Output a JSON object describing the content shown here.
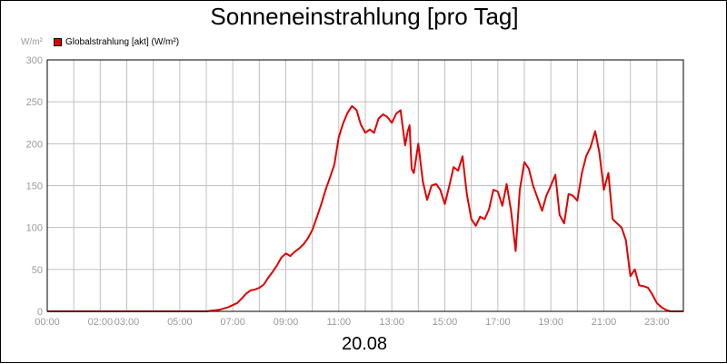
{
  "title": "Sonneneinstrahlung [pro Tag]",
  "y_unit": "W/m²",
  "date_label": "20.08",
  "colors": {
    "series": "#e00000",
    "grid": "#c0c0c0",
    "tick_text": "#9a9a9a",
    "axis": "#000000"
  },
  "chart_data": {
    "type": "line",
    "title": "Sonneneinstrahlung [pro Tag]",
    "ylabel": "W/m²",
    "xlabel": "20.08",
    "ylim": [
      0,
      300
    ],
    "xlim": [
      0,
      24
    ],
    "yticks": [
      0,
      50,
      100,
      150,
      200,
      250,
      300
    ],
    "xticks": [
      {
        "h": 0,
        "label": "00:00"
      },
      {
        "h": 2,
        "label": "02:00"
      },
      {
        "h": 3,
        "label": "03:00"
      },
      {
        "h": 5,
        "label": "05:00"
      },
      {
        "h": 7,
        "label": "07:00"
      },
      {
        "h": 9,
        "label": "09:00"
      },
      {
        "h": 11,
        "label": "11:00"
      },
      {
        "h": 13,
        "label": "13:00"
      },
      {
        "h": 15,
        "label": "15:00"
      },
      {
        "h": 17,
        "label": "17:00"
      },
      {
        "h": 19,
        "label": "19:00"
      },
      {
        "h": 21,
        "label": "21:00"
      },
      {
        "h": 23,
        "label": "23:00"
      }
    ],
    "grid": true,
    "legend": "top-left",
    "series": [
      {
        "name": "Globalstrahlung [akt] (W/m²)",
        "color": "#e00000",
        "points": [
          [
            0.0,
            0
          ],
          [
            6.0,
            0
          ],
          [
            6.5,
            2
          ],
          [
            6.83,
            5
          ],
          [
            7.17,
            10
          ],
          [
            7.33,
            15
          ],
          [
            7.5,
            21
          ],
          [
            7.67,
            25
          ],
          [
            7.83,
            26
          ],
          [
            8.0,
            28
          ],
          [
            8.17,
            32
          ],
          [
            8.33,
            40
          ],
          [
            8.5,
            47
          ],
          [
            8.67,
            55
          ],
          [
            8.83,
            64
          ],
          [
            9.0,
            69
          ],
          [
            9.17,
            66
          ],
          [
            9.33,
            71
          ],
          [
            9.5,
            75
          ],
          [
            9.67,
            80
          ],
          [
            9.83,
            87
          ],
          [
            10.0,
            97
          ],
          [
            10.17,
            112
          ],
          [
            10.33,
            127
          ],
          [
            10.5,
            145
          ],
          [
            10.67,
            160
          ],
          [
            10.83,
            175
          ],
          [
            11.0,
            208
          ],
          [
            11.17,
            225
          ],
          [
            11.33,
            237
          ],
          [
            11.5,
            245
          ],
          [
            11.67,
            240
          ],
          [
            11.83,
            223
          ],
          [
            12.0,
            213
          ],
          [
            12.17,
            217
          ],
          [
            12.33,
            213
          ],
          [
            12.5,
            230
          ],
          [
            12.67,
            235
          ],
          [
            12.83,
            232
          ],
          [
            13.0,
            225
          ],
          [
            13.17,
            236
          ],
          [
            13.33,
            240
          ],
          [
            13.5,
            198
          ],
          [
            13.6,
            215
          ],
          [
            13.67,
            222
          ],
          [
            13.75,
            170
          ],
          [
            13.83,
            165
          ],
          [
            14.0,
            200
          ],
          [
            14.17,
            155
          ],
          [
            14.33,
            133
          ],
          [
            14.5,
            150
          ],
          [
            14.67,
            152
          ],
          [
            14.83,
            145
          ],
          [
            15.0,
            128
          ],
          [
            15.17,
            150
          ],
          [
            15.33,
            172
          ],
          [
            15.5,
            168
          ],
          [
            15.67,
            185
          ],
          [
            15.83,
            140
          ],
          [
            16.0,
            110
          ],
          [
            16.17,
            102
          ],
          [
            16.33,
            113
          ],
          [
            16.5,
            110
          ],
          [
            16.67,
            122
          ],
          [
            16.83,
            145
          ],
          [
            17.0,
            143
          ],
          [
            17.17,
            126
          ],
          [
            17.33,
            152
          ],
          [
            17.5,
            120
          ],
          [
            17.67,
            72
          ],
          [
            17.83,
            145
          ],
          [
            18.0,
            178
          ],
          [
            18.17,
            170
          ],
          [
            18.33,
            150
          ],
          [
            18.5,
            135
          ],
          [
            18.67,
            120
          ],
          [
            18.83,
            138
          ],
          [
            19.0,
            150
          ],
          [
            19.17,
            163
          ],
          [
            19.33,
            115
          ],
          [
            19.5,
            105
          ],
          [
            19.67,
            140
          ],
          [
            19.83,
            138
          ],
          [
            20.0,
            132
          ],
          [
            20.17,
            165
          ],
          [
            20.33,
            185
          ],
          [
            20.5,
            196
          ],
          [
            20.67,
            215
          ],
          [
            20.83,
            190
          ],
          [
            21.0,
            145
          ],
          [
            21.17,
            165
          ],
          [
            21.33,
            110
          ],
          [
            21.5,
            105
          ],
          [
            21.67,
            100
          ],
          [
            21.83,
            85
          ],
          [
            22.0,
            42
          ],
          [
            22.17,
            50
          ],
          [
            22.33,
            31
          ],
          [
            22.5,
            30
          ],
          [
            22.67,
            28
          ],
          [
            22.83,
            20
          ],
          [
            23.0,
            10
          ],
          [
            23.17,
            5
          ],
          [
            23.33,
            2
          ],
          [
            23.5,
            0
          ],
          [
            24.0,
            0
          ]
        ]
      }
    ]
  }
}
